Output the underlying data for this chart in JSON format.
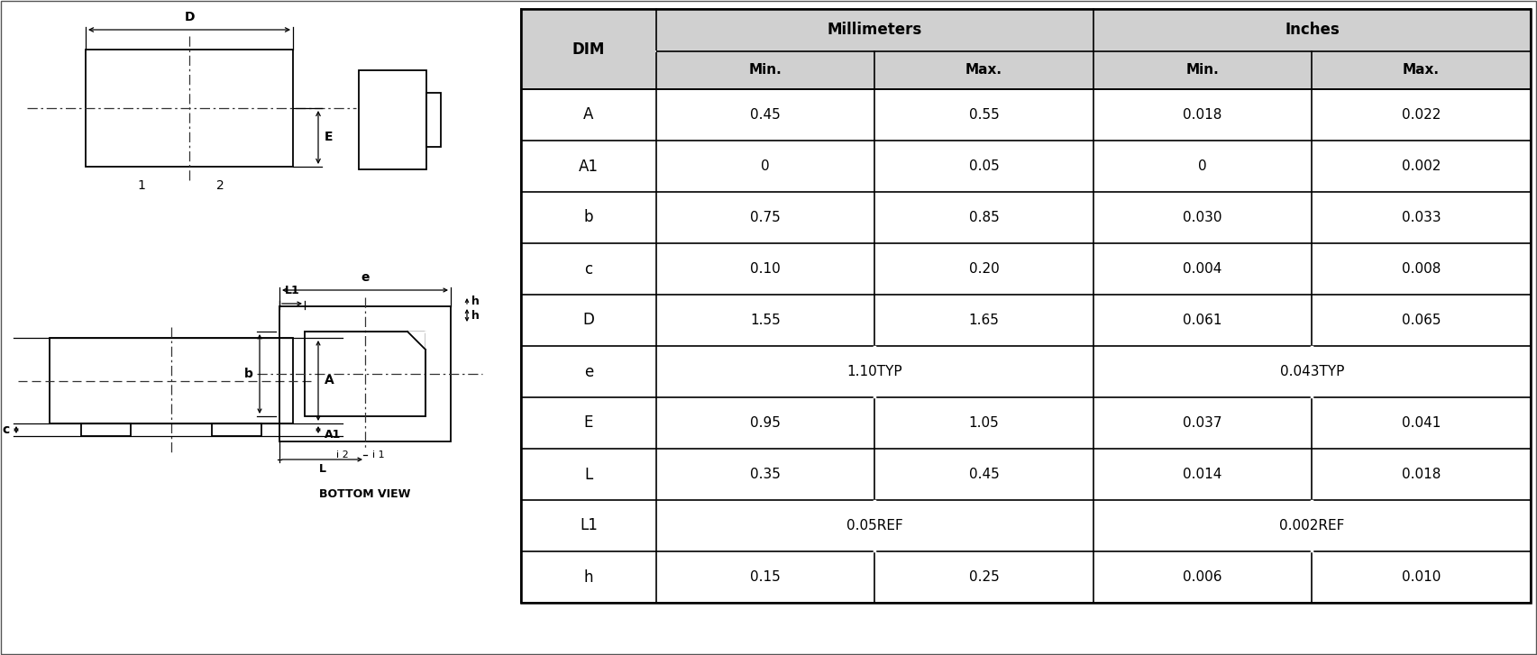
{
  "table_rows": [
    [
      "A",
      "0.45",
      "0.55",
      "0.018",
      "0.022"
    ],
    [
      "A1",
      "0",
      "0.05",
      "0",
      "0.002"
    ],
    [
      "b",
      "0.75",
      "0.85",
      "0.030",
      "0.033"
    ],
    [
      "c",
      "0.10",
      "0.20",
      "0.004",
      "0.008"
    ],
    [
      "D",
      "1.55",
      "1.65",
      "0.061",
      "0.065"
    ],
    [
      "e",
      "1.10TYP",
      "",
      "0.043TYP",
      ""
    ],
    [
      "E",
      "0.95",
      "1.05",
      "0.037",
      "0.041"
    ],
    [
      "L",
      "0.35",
      "0.45",
      "0.014",
      "0.018"
    ],
    [
      "L1",
      "0.05REF",
      "",
      "0.002REF",
      ""
    ],
    [
      "h",
      "0.15",
      "0.25",
      "0.006",
      "0.010"
    ]
  ],
  "header_bg": "#d0d0d0",
  "row_bg": "#ffffff",
  "border_color": "#000000",
  "drawing_color": "#000000"
}
